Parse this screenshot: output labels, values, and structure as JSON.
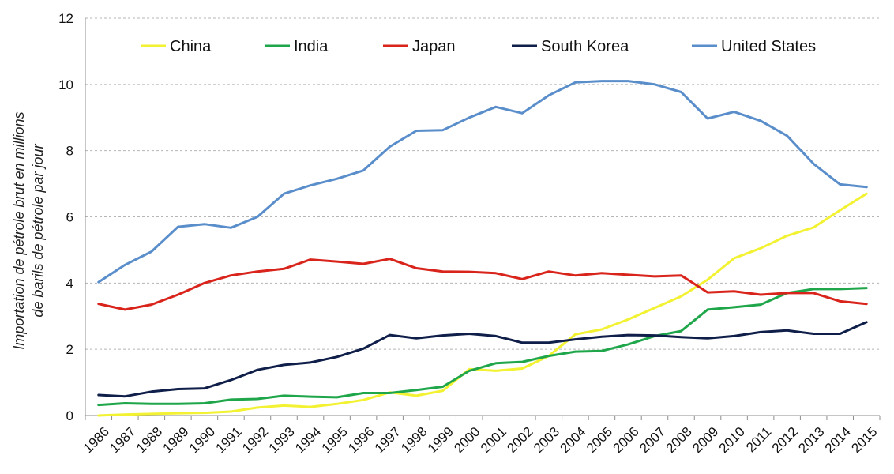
{
  "chart_data": {
    "type": "line",
    "title": "",
    "xlabel": "",
    "ylabel_line1": "Importation de pétrole brut en millions",
    "ylabel_line2": "de barils de pétrole par jour",
    "ylim": [
      0,
      12
    ],
    "yticks": [
      0,
      2,
      4,
      6,
      8,
      10,
      12
    ],
    "grid": true,
    "legend_position": "top",
    "x": [
      1986,
      1987,
      1988,
      1989,
      1990,
      1991,
      1992,
      1993,
      1994,
      1995,
      1996,
      1997,
      1998,
      1999,
      2000,
      2001,
      2002,
      2003,
      2004,
      2005,
      2006,
      2007,
      2008,
      2009,
      2010,
      2011,
      2012,
      2013,
      2014,
      2015
    ],
    "series": [
      {
        "name": "China",
        "color": "#f2f232",
        "values": [
          0.0,
          0.03,
          0.05,
          0.07,
          0.08,
          0.12,
          0.24,
          0.3,
          0.26,
          0.35,
          0.47,
          0.7,
          0.6,
          0.75,
          1.4,
          1.35,
          1.42,
          1.8,
          2.45,
          2.6,
          2.9,
          3.25,
          3.6,
          4.1,
          4.75,
          5.05,
          5.43,
          5.68,
          6.2,
          6.7
        ]
      },
      {
        "name": "India",
        "color": "#1fa64a",
        "values": [
          0.32,
          0.37,
          0.35,
          0.35,
          0.37,
          0.48,
          0.5,
          0.6,
          0.57,
          0.55,
          0.68,
          0.68,
          0.77,
          0.87,
          1.35,
          1.58,
          1.62,
          1.8,
          1.93,
          1.95,
          2.15,
          2.4,
          2.55,
          3.2,
          3.27,
          3.35,
          3.7,
          3.82,
          3.82,
          3.85
        ]
      },
      {
        "name": "Japan",
        "color": "#d9241c",
        "values": [
          3.37,
          3.2,
          3.35,
          3.65,
          4.0,
          4.23,
          4.35,
          4.43,
          4.71,
          4.65,
          4.58,
          4.73,
          4.45,
          4.35,
          4.34,
          4.3,
          4.12,
          4.35,
          4.23,
          4.3,
          4.25,
          4.2,
          4.23,
          3.72,
          3.75,
          3.65,
          3.7,
          3.7,
          3.45,
          3.37
        ]
      },
      {
        "name": "South Korea",
        "color": "#0f1f4a",
        "values": [
          0.62,
          0.58,
          0.72,
          0.8,
          0.82,
          1.07,
          1.38,
          1.53,
          1.6,
          1.77,
          2.02,
          2.43,
          2.33,
          2.42,
          2.47,
          2.4,
          2.2,
          2.2,
          2.3,
          2.38,
          2.43,
          2.42,
          2.37,
          2.33,
          2.4,
          2.52,
          2.57,
          2.47,
          2.47,
          2.82
        ]
      },
      {
        "name": "United States",
        "color": "#5a8ecb",
        "values": [
          4.03,
          4.55,
          4.95,
          5.7,
          5.78,
          5.67,
          6.0,
          6.7,
          6.95,
          7.15,
          7.4,
          8.12,
          8.6,
          8.62,
          9.0,
          9.32,
          9.13,
          9.67,
          10.06,
          10.1,
          10.1,
          10.0,
          9.77,
          8.97,
          9.17,
          8.9,
          8.45,
          7.6,
          6.98,
          6.9
        ]
      }
    ]
  }
}
